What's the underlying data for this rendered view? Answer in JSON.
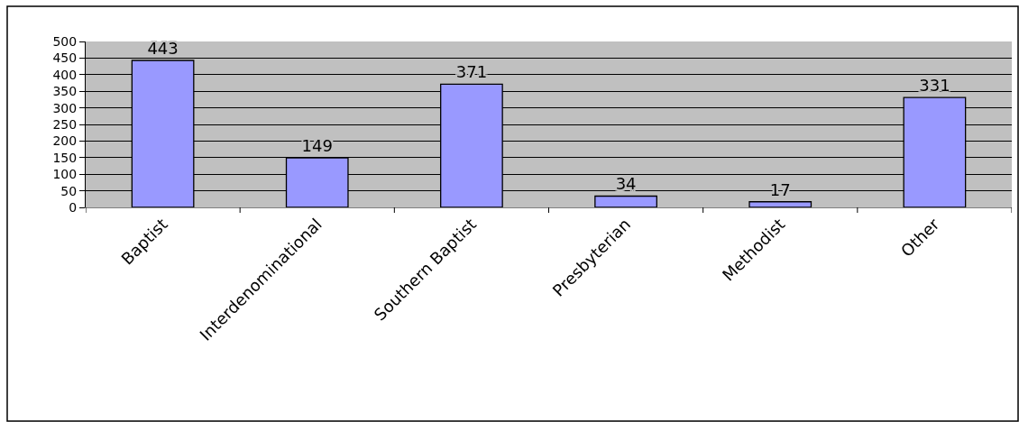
{
  "chart_data": {
    "type": "bar",
    "categories": [
      "Baptist",
      "Interdenominational",
      "Southern Baptist",
      "Presbyterian",
      "Methodist",
      "Other"
    ],
    "values": [
      443,
      149,
      371,
      34,
      17,
      331
    ],
    "color": "#9999ff",
    "ylim": [
      0,
      500
    ],
    "yticks": [
      0,
      50,
      100,
      150,
      200,
      250,
      300,
      350,
      400,
      450,
      500
    ],
    "grid": "y",
    "data_labels": true
  }
}
